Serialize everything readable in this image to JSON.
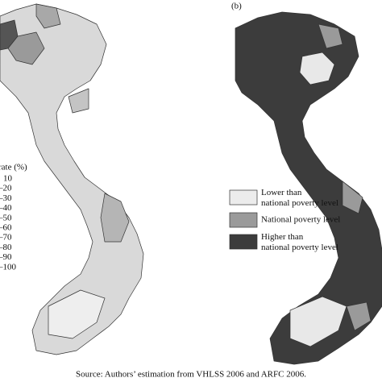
{
  "panel_b_label": "(b)",
  "left_legend": {
    "title": "rate (%)",
    "items": [
      "10",
      "–20",
      "–30",
      "–40",
      "–50",
      "–60",
      "–70",
      "–80",
      "–90",
      "–100"
    ]
  },
  "right_legend": {
    "items": [
      "Lower than national poverty level",
      "National poverty level",
      "Higher than national poverty level"
    ]
  },
  "source": "Source: Authors’ estimation from VHLSS 2006 and ARFC 2006."
}
